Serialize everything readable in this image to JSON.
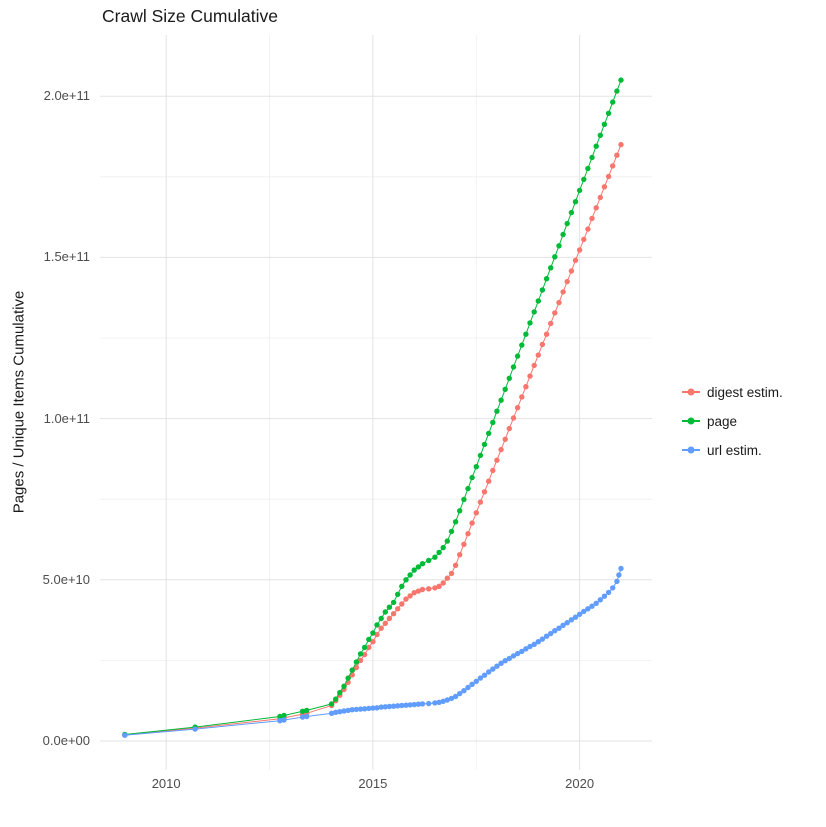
{
  "chart_data": {
    "type": "line",
    "title": "Crawl Size Cumulative",
    "xlabel": "",
    "ylabel": "Pages / Unique Items Cumulative",
    "y_unit_note": "point y-values are in billions (multiply by 1e9)",
    "grid": true,
    "legend_position": "right",
    "xlim": [
      2008.4,
      2021.75
    ],
    "ylim_billions": [
      -9,
      219
    ],
    "x_tick_values": [
      2010,
      2015,
      2020
    ],
    "x_tick_labels": [
      "2010",
      "2015",
      "2020"
    ],
    "y_tick_values": [
      0,
      50,
      100,
      150,
      200
    ],
    "y_tick_labels": [
      "0.0e+00",
      "5.0e+10",
      "1.0e+11",
      "1.5e+11",
      "2.0e+11"
    ],
    "x_minor": [
      2012.5,
      2017.5
    ],
    "y_minor": [
      25,
      75,
      125,
      175
    ],
    "series": [
      {
        "name": "digest estim.",
        "color": "#F8766D",
        "points": [
          [
            2009,
            1.9
          ],
          [
            2010.7,
            4
          ],
          [
            2012.75,
            6.9
          ],
          [
            2012.85,
            7.2
          ],
          [
            2013.3,
            8.3
          ],
          [
            2013.4,
            8.6
          ],
          [
            2014,
            11
          ],
          [
            2014.1,
            12.5
          ],
          [
            2014.2,
            14.2
          ],
          [
            2014.3,
            16
          ],
          [
            2014.4,
            18.2
          ],
          [
            2014.5,
            20.5
          ],
          [
            2014.6,
            22.8
          ],
          [
            2014.7,
            25
          ],
          [
            2014.8,
            26.8
          ],
          [
            2014.9,
            29
          ],
          [
            2015,
            30.8
          ],
          [
            2015.1,
            33
          ],
          [
            2015.2,
            35
          ],
          [
            2015.3,
            36.5
          ],
          [
            2015.4,
            38
          ],
          [
            2015.5,
            39.5
          ],
          [
            2015.6,
            41
          ],
          [
            2015.7,
            42.5
          ],
          [
            2015.8,
            44
          ],
          [
            2015.9,
            45
          ],
          [
            2016,
            46
          ],
          [
            2016.1,
            46.5
          ],
          [
            2016.2,
            47
          ],
          [
            2016.35,
            47.2
          ],
          [
            2016.5,
            47.5
          ],
          [
            2016.6,
            48
          ],
          [
            2016.7,
            49
          ],
          [
            2016.8,
            50.5
          ],
          [
            2016.9,
            52
          ],
          [
            2017,
            54.5
          ],
          [
            2017.1,
            57.8
          ],
          [
            2017.2,
            61
          ],
          [
            2017.3,
            64.3
          ],
          [
            2017.4,
            67.6
          ],
          [
            2017.5,
            70.8
          ],
          [
            2017.6,
            74.1
          ],
          [
            2017.7,
            77.3
          ],
          [
            2017.8,
            80.6
          ],
          [
            2017.9,
            83.9
          ],
          [
            2018,
            87.1
          ],
          [
            2018.1,
            90.4
          ],
          [
            2018.2,
            93.6
          ],
          [
            2018.3,
            96.9
          ],
          [
            2018.4,
            100.2
          ],
          [
            2018.5,
            103.4
          ],
          [
            2018.6,
            106.7
          ],
          [
            2018.7,
            109.9
          ],
          [
            2018.8,
            113.2
          ],
          [
            2018.9,
            116.5
          ],
          [
            2019,
            119.7
          ],
          [
            2019.1,
            123
          ],
          [
            2019.2,
            126.2
          ],
          [
            2019.3,
            129.5
          ],
          [
            2019.4,
            132.8
          ],
          [
            2019.5,
            136
          ],
          [
            2019.6,
            139.3
          ],
          [
            2019.7,
            142.5
          ],
          [
            2019.8,
            145.8
          ],
          [
            2019.9,
            149.1
          ],
          [
            2020,
            152.3
          ],
          [
            2020.1,
            155.6
          ],
          [
            2020.2,
            158.8
          ],
          [
            2020.3,
            162.1
          ],
          [
            2020.4,
            165.4
          ],
          [
            2020.5,
            168.6
          ],
          [
            2020.6,
            171.9
          ],
          [
            2020.7,
            175.1
          ],
          [
            2020.8,
            178.4
          ],
          [
            2020.9,
            181.7
          ],
          [
            2021,
            185
          ]
        ]
      },
      {
        "name": "page",
        "color": "#00BA38",
        "points": [
          [
            2009,
            2
          ],
          [
            2010.7,
            4.3
          ],
          [
            2012.75,
            7.6
          ],
          [
            2012.85,
            7.9
          ],
          [
            2013.3,
            9.2
          ],
          [
            2013.4,
            9.5
          ],
          [
            2014,
            11.5
          ],
          [
            2014.1,
            13
          ],
          [
            2014.2,
            15
          ],
          [
            2014.3,
            17
          ],
          [
            2014.4,
            19.5
          ],
          [
            2014.5,
            22
          ],
          [
            2014.6,
            24.5
          ],
          [
            2014.7,
            27
          ],
          [
            2014.8,
            29
          ],
          [
            2014.9,
            31.5
          ],
          [
            2015,
            33.5
          ],
          [
            2015.1,
            36
          ],
          [
            2015.2,
            38
          ],
          [
            2015.3,
            40
          ],
          [
            2015.4,
            41.5
          ],
          [
            2015.5,
            43
          ],
          [
            2015.6,
            45.5
          ],
          [
            2015.7,
            48
          ],
          [
            2015.8,
            50
          ],
          [
            2015.9,
            51.5
          ],
          [
            2016,
            53
          ],
          [
            2016.1,
            54
          ],
          [
            2016.2,
            55
          ],
          [
            2016.35,
            56
          ],
          [
            2016.5,
            57
          ],
          [
            2016.6,
            58.5
          ],
          [
            2016.7,
            60
          ],
          [
            2016.8,
            62
          ],
          [
            2016.9,
            65
          ],
          [
            2017,
            68
          ],
          [
            2017.1,
            71.4
          ],
          [
            2017.2,
            74.9
          ],
          [
            2017.3,
            78.3
          ],
          [
            2017.4,
            81.7
          ],
          [
            2017.5,
            85.1
          ],
          [
            2017.6,
            88.6
          ],
          [
            2017.7,
            92
          ],
          [
            2017.8,
            95.4
          ],
          [
            2017.9,
            98.8
          ],
          [
            2018,
            102.3
          ],
          [
            2018.1,
            105.7
          ],
          [
            2018.2,
            109.1
          ],
          [
            2018.3,
            112.5
          ],
          [
            2018.4,
            116
          ],
          [
            2018.5,
            119.4
          ],
          [
            2018.6,
            122.8
          ],
          [
            2018.7,
            126.2
          ],
          [
            2018.8,
            129.7
          ],
          [
            2018.9,
            133.1
          ],
          [
            2019,
            136.5
          ],
          [
            2019.1,
            139.9
          ],
          [
            2019.2,
            143.4
          ],
          [
            2019.3,
            146.8
          ],
          [
            2019.4,
            150.2
          ],
          [
            2019.5,
            153.6
          ],
          [
            2019.6,
            157.1
          ],
          [
            2019.7,
            160.5
          ],
          [
            2019.8,
            163.9
          ],
          [
            2019.9,
            167.3
          ],
          [
            2020,
            170.8
          ],
          [
            2020.1,
            174.2
          ],
          [
            2020.2,
            177.6
          ],
          [
            2020.3,
            181
          ],
          [
            2020.4,
            184.5
          ],
          [
            2020.5,
            187.9
          ],
          [
            2020.6,
            191.3
          ],
          [
            2020.7,
            194.7
          ],
          [
            2020.8,
            198.2
          ],
          [
            2020.9,
            201.6
          ],
          [
            2021,
            205
          ]
        ]
      },
      {
        "name": "url estim.",
        "color": "#619CFF",
        "points": [
          [
            2009,
            1.8
          ],
          [
            2010.7,
            3.7
          ],
          [
            2012.75,
            6.3
          ],
          [
            2012.85,
            6.5
          ],
          [
            2013.3,
            7.4
          ],
          [
            2013.4,
            7.6
          ],
          [
            2014,
            8.6
          ],
          [
            2014.1,
            8.9
          ],
          [
            2014.2,
            9.1
          ],
          [
            2014.3,
            9.3
          ],
          [
            2014.4,
            9.5
          ],
          [
            2014.5,
            9.7
          ],
          [
            2014.6,
            9.8
          ],
          [
            2014.7,
            9.9
          ],
          [
            2014.8,
            10
          ],
          [
            2014.9,
            10.1
          ],
          [
            2015,
            10.2
          ],
          [
            2015.1,
            10.3
          ],
          [
            2015.2,
            10.5
          ],
          [
            2015.3,
            10.6
          ],
          [
            2015.4,
            10.7
          ],
          [
            2015.5,
            10.8
          ],
          [
            2015.6,
            10.9
          ],
          [
            2015.7,
            11
          ],
          [
            2015.8,
            11.1
          ],
          [
            2015.9,
            11.2
          ],
          [
            2016,
            11.3
          ],
          [
            2016.1,
            11.4
          ],
          [
            2016.2,
            11.5
          ],
          [
            2016.35,
            11.6
          ],
          [
            2016.5,
            11.8
          ],
          [
            2016.6,
            12
          ],
          [
            2016.7,
            12.3
          ],
          [
            2016.8,
            12.7
          ],
          [
            2016.9,
            13.2
          ],
          [
            2017,
            13.8
          ],
          [
            2017.1,
            14.7
          ],
          [
            2017.2,
            15.6
          ],
          [
            2017.3,
            16.6
          ],
          [
            2017.4,
            17.6
          ],
          [
            2017.5,
            18.5
          ],
          [
            2017.6,
            19.5
          ],
          [
            2017.7,
            20.4
          ],
          [
            2017.8,
            21.4
          ],
          [
            2017.9,
            22.3
          ],
          [
            2018,
            23.2
          ],
          [
            2018.1,
            24.1
          ],
          [
            2018.2,
            24.9
          ],
          [
            2018.3,
            25.6
          ],
          [
            2018.4,
            26.4
          ],
          [
            2018.5,
            27.1
          ],
          [
            2018.6,
            27.8
          ],
          [
            2018.7,
            28.6
          ],
          [
            2018.8,
            29.3
          ],
          [
            2018.9,
            30
          ],
          [
            2019,
            30.8
          ],
          [
            2019.1,
            31.6
          ],
          [
            2019.2,
            32.5
          ],
          [
            2019.3,
            33.3
          ],
          [
            2019.4,
            34.2
          ],
          [
            2019.5,
            35
          ],
          [
            2019.6,
            35.9
          ],
          [
            2019.7,
            36.7
          ],
          [
            2019.8,
            37.6
          ],
          [
            2019.9,
            38.4
          ],
          [
            2020,
            39.3
          ],
          [
            2020.1,
            40.2
          ],
          [
            2020.2,
            41
          ],
          [
            2020.3,
            41.8
          ],
          [
            2020.4,
            42.7
          ],
          [
            2020.5,
            43.8
          ],
          [
            2020.6,
            44.9
          ],
          [
            2020.7,
            46.1
          ],
          [
            2020.8,
            47.5
          ],
          [
            2020.9,
            49.5
          ],
          [
            2020.95,
            51.5
          ],
          [
            2021,
            53.5
          ]
        ]
      }
    ]
  },
  "style": {
    "major_grid_color": "#e3e3e3",
    "minor_grid_color": "#efefef",
    "axis_text_color": "#4d4d4d",
    "text_color": "#1a1a1a",
    "background": "#ffffff"
  }
}
